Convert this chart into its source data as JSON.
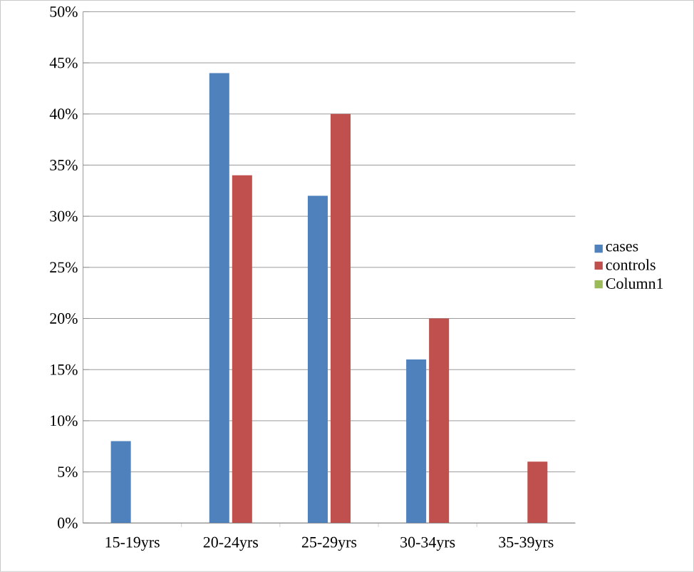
{
  "chart_data": {
    "type": "bar",
    "categories": [
      "15-19yrs",
      "20-24yrs",
      "25-29yrs",
      "30-34yrs",
      "35-39yrs"
    ],
    "series": [
      {
        "name": "cases",
        "color": "#4f81bd",
        "values": [
          8,
          44,
          32,
          16,
          0
        ]
      },
      {
        "name": "controls",
        "color": "#c0504d",
        "values": [
          0,
          34,
          40,
          20,
          6
        ]
      },
      {
        "name": "Column1",
        "color": "#9bbb59",
        "values": [
          null,
          null,
          null,
          null,
          null
        ]
      }
    ],
    "ylim": [
      0,
      50
    ],
    "yticks": [
      {
        "value": 0,
        "label": "0%"
      },
      {
        "value": 5,
        "label": "5%"
      },
      {
        "value": 10,
        "label": "10%"
      },
      {
        "value": 15,
        "label": "15%"
      },
      {
        "value": 20,
        "label": "20%"
      },
      {
        "value": 25,
        "label": "25%"
      },
      {
        "value": 30,
        "label": "30%"
      },
      {
        "value": 35,
        "label": "35%"
      },
      {
        "value": 40,
        "label": "40%"
      },
      {
        "value": 45,
        "label": "45%"
      },
      {
        "value": 50,
        "label": "50%"
      }
    ],
    "grid": "y",
    "legend": "right"
  }
}
